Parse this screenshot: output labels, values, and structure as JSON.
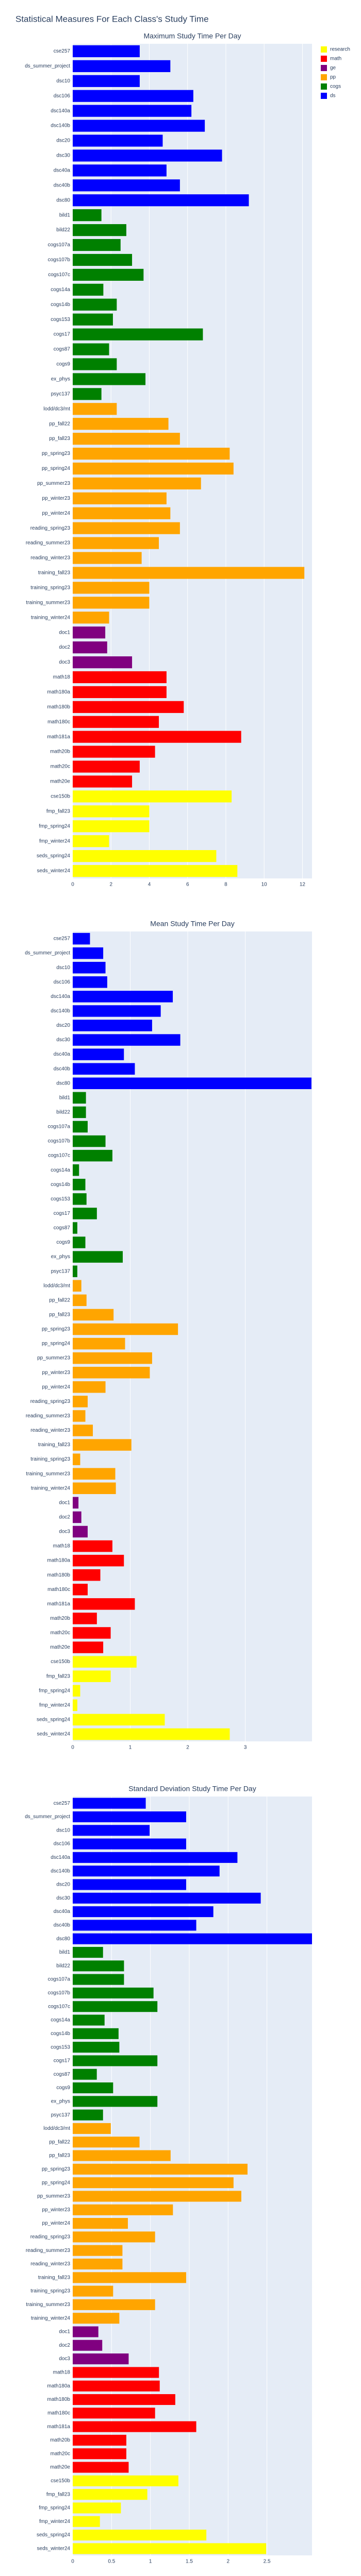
{
  "title": "Statistical Measures For Each Class's Study Time",
  "legend": [
    {
      "name": "research",
      "color": "#ffff00"
    },
    {
      "name": "math",
      "color": "#ff0000"
    },
    {
      "name": "ge",
      "color": "#800080"
    },
    {
      "name": "pp",
      "color": "#ffa500"
    },
    {
      "name": "cogs",
      "color": "#008000"
    },
    {
      "name": "ds",
      "color": "#0000ff"
    }
  ],
  "chart_data": [
    {
      "type": "bar",
      "orientation": "horizontal",
      "title": "Maximum Study Time Per Day",
      "categories": [
        "cse257",
        "ds_summer_project",
        "dsc10",
        "dsc106",
        "dsc140a",
        "dsc140b",
        "dsc20",
        "dsc30",
        "dsc40a",
        "dsc40b",
        "dsc80",
        "bild1",
        "bild22",
        "cogs107a",
        "cogs107b",
        "cogs107c",
        "cogs14a",
        "cogs14b",
        "cogs153",
        "cogs17",
        "cogs87",
        "cogs9",
        "ex_phys",
        "psyc137",
        "lodd/dc3/mt",
        "pp_fall22",
        "pp_fall23",
        "pp_spring23",
        "pp_spring24",
        "pp_summer23",
        "pp_winter23",
        "pp_winter24",
        "reading_spring23",
        "reading_summer23",
        "reading_winter23",
        "training_fall23",
        "training_spring23",
        "training_summer23",
        "training_winter24",
        "doc1",
        "doc2",
        "doc3",
        "math18",
        "math180a",
        "math180b",
        "math180c",
        "math181a",
        "math20b",
        "math20c",
        "math20e",
        "cse150b",
        "fmp_fall23",
        "fmp_spring24",
        "fmp_winter24",
        "seds_spring24",
        "seds_winter24"
      ],
      "values": [
        3.5,
        5.1,
        3.5,
        6.3,
        6.2,
        6.9,
        4.7,
        7.8,
        4.9,
        5.6,
        9.2,
        1.5,
        2.8,
        2.5,
        3.1,
        3.7,
        1.6,
        2.3,
        2.1,
        6.8,
        1.9,
        2.3,
        3.8,
        1.5,
        2.3,
        5.0,
        5.6,
        8.2,
        8.4,
        6.7,
        4.9,
        5.1,
        5.6,
        4.5,
        3.6,
        12.1,
        4.0,
        4.0,
        1.9,
        1.7,
        1.8,
        3.1,
        4.9,
        4.9,
        5.8,
        4.5,
        8.8,
        4.3,
        3.5,
        3.1,
        8.3,
        4.0,
        4.0,
        1.9,
        7.5,
        8.6
      ],
      "colors": [
        "#0000ff",
        "#0000ff",
        "#0000ff",
        "#0000ff",
        "#0000ff",
        "#0000ff",
        "#0000ff",
        "#0000ff",
        "#0000ff",
        "#0000ff",
        "#0000ff",
        "#008000",
        "#008000",
        "#008000",
        "#008000",
        "#008000",
        "#008000",
        "#008000",
        "#008000",
        "#008000",
        "#008000",
        "#008000",
        "#008000",
        "#008000",
        "#ffa500",
        "#ffa500",
        "#ffa500",
        "#ffa500",
        "#ffa500",
        "#ffa500",
        "#ffa500",
        "#ffa500",
        "#ffa500",
        "#ffa500",
        "#ffa500",
        "#ffa500",
        "#ffa500",
        "#ffa500",
        "#ffa500",
        "#800080",
        "#800080",
        "#800080",
        "#ff0000",
        "#ff0000",
        "#ff0000",
        "#ff0000",
        "#ff0000",
        "#ff0000",
        "#ff0000",
        "#ff0000",
        "#ffff00",
        "#ffff00",
        "#ffff00",
        "#ffff00",
        "#ffff00",
        "#ffff00"
      ],
      "xlim": [
        0,
        12.5
      ],
      "xticks": [
        0,
        2,
        4,
        6,
        8,
        10,
        12
      ],
      "grid": true
    },
    {
      "type": "bar",
      "orientation": "horizontal",
      "title": "Mean Study Time Per Day",
      "categories": [
        "cse257",
        "ds_summer_project",
        "dsc10",
        "dsc106",
        "dsc140a",
        "dsc140b",
        "dsc20",
        "dsc30",
        "dsc40a",
        "dsc40b",
        "dsc80",
        "bild1",
        "bild22",
        "cogs107a",
        "cogs107b",
        "cogs107c",
        "cogs14a",
        "cogs14b",
        "cogs153",
        "cogs17",
        "cogs87",
        "cogs9",
        "ex_phys",
        "psyc137",
        "lodd/dc3/mt",
        "pp_fall22",
        "pp_fall23",
        "pp_spring23",
        "pp_spring24",
        "pp_summer23",
        "pp_winter23",
        "pp_winter24",
        "reading_spring23",
        "reading_summer23",
        "reading_winter23",
        "training_fall23",
        "training_spring23",
        "training_summer23",
        "training_winter24",
        "doc1",
        "doc2",
        "doc3",
        "math18",
        "math180a",
        "math180b",
        "math180c",
        "math181a",
        "math20b",
        "math20c",
        "math20e",
        "cse150b",
        "fmp_fall23",
        "fmp_spring24",
        "fmp_winter24",
        "seds_spring24",
        "seds_winter24"
      ],
      "values": [
        0.3,
        0.53,
        0.57,
        0.6,
        1.74,
        1.53,
        1.38,
        1.87,
        0.89,
        1.08,
        4.15,
        0.23,
        0.23,
        0.26,
        0.57,
        0.69,
        0.11,
        0.22,
        0.24,
        0.42,
        0.08,
        0.22,
        0.87,
        0.08,
        0.15,
        0.24,
        0.71,
        1.83,
        0.91,
        1.38,
        1.34,
        0.57,
        0.26,
        0.22,
        0.35,
        1.02,
        0.13,
        0.74,
        0.75,
        0.1,
        0.15,
        0.26,
        0.69,
        0.89,
        0.48,
        0.26,
        1.08,
        0.42,
        0.66,
        0.53,
        1.11,
        0.66,
        0.13,
        0.08,
        1.6,
        2.73
      ],
      "colors": [
        "#0000ff",
        "#0000ff",
        "#0000ff",
        "#0000ff",
        "#0000ff",
        "#0000ff",
        "#0000ff",
        "#0000ff",
        "#0000ff",
        "#0000ff",
        "#0000ff",
        "#008000",
        "#008000",
        "#008000",
        "#008000",
        "#008000",
        "#008000",
        "#008000",
        "#008000",
        "#008000",
        "#008000",
        "#008000",
        "#008000",
        "#008000",
        "#ffa500",
        "#ffa500",
        "#ffa500",
        "#ffa500",
        "#ffa500",
        "#ffa500",
        "#ffa500",
        "#ffa500",
        "#ffa500",
        "#ffa500",
        "#ffa500",
        "#ffa500",
        "#ffa500",
        "#ffa500",
        "#ffa500",
        "#800080",
        "#800080",
        "#800080",
        "#ff0000",
        "#ff0000",
        "#ff0000",
        "#ff0000",
        "#ff0000",
        "#ff0000",
        "#ff0000",
        "#ff0000",
        "#ffff00",
        "#ffff00",
        "#ffff00",
        "#ffff00",
        "#ffff00",
        "#ffff00"
      ],
      "xlim": [
        0,
        4.16
      ],
      "xticks": [
        0,
        1,
        2,
        3
      ],
      "grid": true
    },
    {
      "type": "bar",
      "orientation": "horizontal",
      "title": "Standard Deviation Study Time Per Day",
      "categories": [
        "cse257",
        "ds_summer_project",
        "dsc10",
        "dsc106",
        "dsc140a",
        "dsc140b",
        "dsc20",
        "dsc30",
        "dsc40a",
        "dsc40b",
        "dsc80",
        "bild1",
        "bild22",
        "cogs107a",
        "cogs107b",
        "cogs107c",
        "cogs14a",
        "cogs14b",
        "cogs153",
        "cogs17",
        "cogs87",
        "cogs9",
        "ex_phys",
        "psyc137",
        "lodd/dc3/mt",
        "pp_fall22",
        "pp_fall23",
        "pp_spring23",
        "pp_spring24",
        "pp_summer23",
        "pp_winter23",
        "pp_winter24",
        "reading_spring23",
        "reading_summer23",
        "reading_winter23",
        "training_fall23",
        "training_spring23",
        "training_summer23",
        "training_winter24",
        "doc1",
        "doc2",
        "doc3",
        "math18",
        "math180a",
        "math180b",
        "math180c",
        "math181a",
        "math20b",
        "math20c",
        "math20e",
        "cse150b",
        "fmp_fall23",
        "fmp_spring24",
        "fmp_winter24",
        "seds_spring24",
        "seds_winter24"
      ],
      "values": [
        0.94,
        1.46,
        0.99,
        1.46,
        2.12,
        1.89,
        1.46,
        2.42,
        1.81,
        1.59,
        3.08,
        0.39,
        0.66,
        0.66,
        1.04,
        1.09,
        0.41,
        0.59,
        0.6,
        1.09,
        0.31,
        0.52,
        1.09,
        0.39,
        0.49,
        0.86,
        1.26,
        2.25,
        2.07,
        2.17,
        1.29,
        0.71,
        1.06,
        0.64,
        0.64,
        1.46,
        0.52,
        1.06,
        0.6,
        0.33,
        0.38,
        0.72,
        1.11,
        1.12,
        1.32,
        1.06,
        1.59,
        0.69,
        0.69,
        0.72,
        1.36,
        0.96,
        0.62,
        0.35,
        1.72,
        2.49
      ],
      "colors": [
        "#0000ff",
        "#0000ff",
        "#0000ff",
        "#0000ff",
        "#0000ff",
        "#0000ff",
        "#0000ff",
        "#0000ff",
        "#0000ff",
        "#0000ff",
        "#0000ff",
        "#008000",
        "#008000",
        "#008000",
        "#008000",
        "#008000",
        "#008000",
        "#008000",
        "#008000",
        "#008000",
        "#008000",
        "#008000",
        "#008000",
        "#008000",
        "#ffa500",
        "#ffa500",
        "#ffa500",
        "#ffa500",
        "#ffa500",
        "#ffa500",
        "#ffa500",
        "#ffa500",
        "#ffa500",
        "#ffa500",
        "#ffa500",
        "#ffa500",
        "#ffa500",
        "#ffa500",
        "#ffa500",
        "#800080",
        "#800080",
        "#800080",
        "#ff0000",
        "#ff0000",
        "#ff0000",
        "#ff0000",
        "#ff0000",
        "#ff0000",
        "#ff0000",
        "#ff0000",
        "#ffff00",
        "#ffff00",
        "#ffff00",
        "#ffff00",
        "#ffff00",
        "#ffff00"
      ],
      "xlim": [
        0,
        3.08
      ],
      "xticks": [
        0,
        {
          "value": 0.5,
          "label": "0.5"
        },
        1,
        {
          "value": 1.5,
          "label": "1.5"
        },
        2,
        {
          "value": 2.5,
          "label": "2.5"
        }
      ],
      "grid": true
    }
  ]
}
